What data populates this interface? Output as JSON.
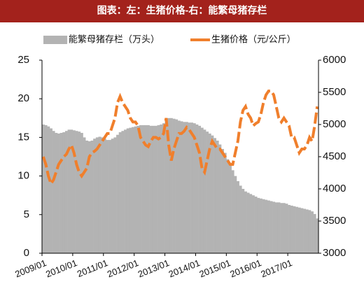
{
  "chart_data": {
    "type": "bar-line",
    "title": "图表：左：生猪价格-右：能繁母猪存栏",
    "categories": [
      "2009/01",
      null,
      null,
      null,
      null,
      null,
      null,
      null,
      null,
      null,
      null,
      null,
      "2010/01",
      null,
      null,
      null,
      null,
      null,
      null,
      null,
      null,
      null,
      null,
      null,
      "2011/01",
      null,
      null,
      null,
      null,
      null,
      null,
      null,
      null,
      null,
      null,
      null,
      "2012/01",
      null,
      null,
      null,
      null,
      null,
      null,
      null,
      null,
      null,
      null,
      null,
      "2013/01",
      null,
      null,
      null,
      null,
      null,
      null,
      null,
      null,
      null,
      null,
      null,
      "2014/01",
      null,
      null,
      null,
      null,
      null,
      null,
      null,
      null,
      null,
      null,
      null,
      "2015/01",
      null,
      null,
      null,
      null,
      null,
      null,
      null,
      null,
      null,
      null,
      null,
      "2016/01",
      null,
      null,
      null,
      null,
      null,
      null,
      null,
      null,
      null,
      null,
      null,
      "2017/01",
      null,
      null,
      null,
      null,
      null,
      null,
      null,
      null,
      null,
      null,
      null
    ],
    "series": [
      {
        "name": "能繁母猪存栏（万头）",
        "color": "#b3b3b3",
        "axis": "y2",
        "kind": "bar",
        "values": [
          5000,
          4990,
          4970,
          4940,
          4900,
          4870,
          4860,
          4870,
          4880,
          4900,
          4920,
          4920,
          4910,
          4900,
          4890,
          4870,
          4800,
          4750,
          4740,
          4750,
          4780,
          4800,
          4810,
          4800,
          4780,
          4760,
          4760,
          4780,
          4800,
          4840,
          4880,
          4900,
          4920,
          4940,
          4950,
          4960,
          4970,
          4980,
          4990,
          4990,
          4990,
          4990,
          4980,
          4980,
          4980,
          4990,
          5000,
          5020,
          5060,
          5100,
          5100,
          5090,
          5080,
          5060,
          5050,
          5040,
          5040,
          5030,
          5030,
          5020,
          5000,
          4980,
          4950,
          4920,
          4890,
          4860,
          4830,
          4790,
          4750,
          4690,
          4620,
          4560,
          4460,
          4380,
          4290,
          4200,
          4120,
          4050,
          4000,
          3960,
          3940,
          3920,
          3900,
          3880,
          3860,
          3850,
          3840,
          3830,
          3820,
          3810,
          3800,
          3790,
          3790,
          3780,
          3780,
          3770,
          3750,
          3740,
          3730,
          3720,
          3710,
          3700,
          3690,
          3680,
          3670,
          3650,
          3610,
          3540
        ]
      },
      {
        "name": "生猪价格（元/公斤）",
        "color": "#f07f2c",
        "axis": "y",
        "kind": "line",
        "values": [
          12.5,
          11.5,
          10,
          9,
          9.5,
          10.5,
          11.5,
          12,
          12.5,
          12.8,
          13.5,
          14,
          13,
          11.5,
          10.5,
          10,
          10.5,
          11,
          12.5,
          13,
          13.2,
          13.5,
          14,
          14.5,
          15,
          15.5,
          15.5,
          16.5,
          17.5,
          19.5,
          20.3,
          19.5,
          19,
          18.5,
          17.5,
          17,
          17,
          16.5,
          15,
          14.5,
          14,
          13.8,
          14.5,
          15,
          15,
          14.8,
          15,
          15.5,
          17.5,
          14,
          12,
          13.5,
          14.5,
          15.5,
          15.5,
          15.8,
          16.3,
          16,
          15.5,
          15,
          14,
          13,
          11,
          10.5,
          12,
          13.5,
          14.5,
          14,
          13.5,
          13.5,
          13,
          12.5,
          12,
          11.5,
          11.5,
          13,
          14.5,
          17,
          18.5,
          19,
          18,
          17.5,
          16.5,
          16.8,
          17,
          18,
          19.5,
          20.5,
          21,
          21,
          20.5,
          19,
          17.5,
          17,
          17.5,
          17,
          16.5,
          15,
          15,
          14,
          13,
          13.5,
          13.5,
          14,
          15,
          14.5,
          16.5,
          19
        ]
      }
    ],
    "ylim": [
      0,
      25
    ],
    "yticks": [
      0,
      5,
      10,
      15,
      20,
      25
    ],
    "y2lim": [
      3000,
      6000
    ],
    "y2ticks": [
      3000,
      3500,
      4000,
      4500,
      5000,
      5500,
      6000
    ]
  }
}
